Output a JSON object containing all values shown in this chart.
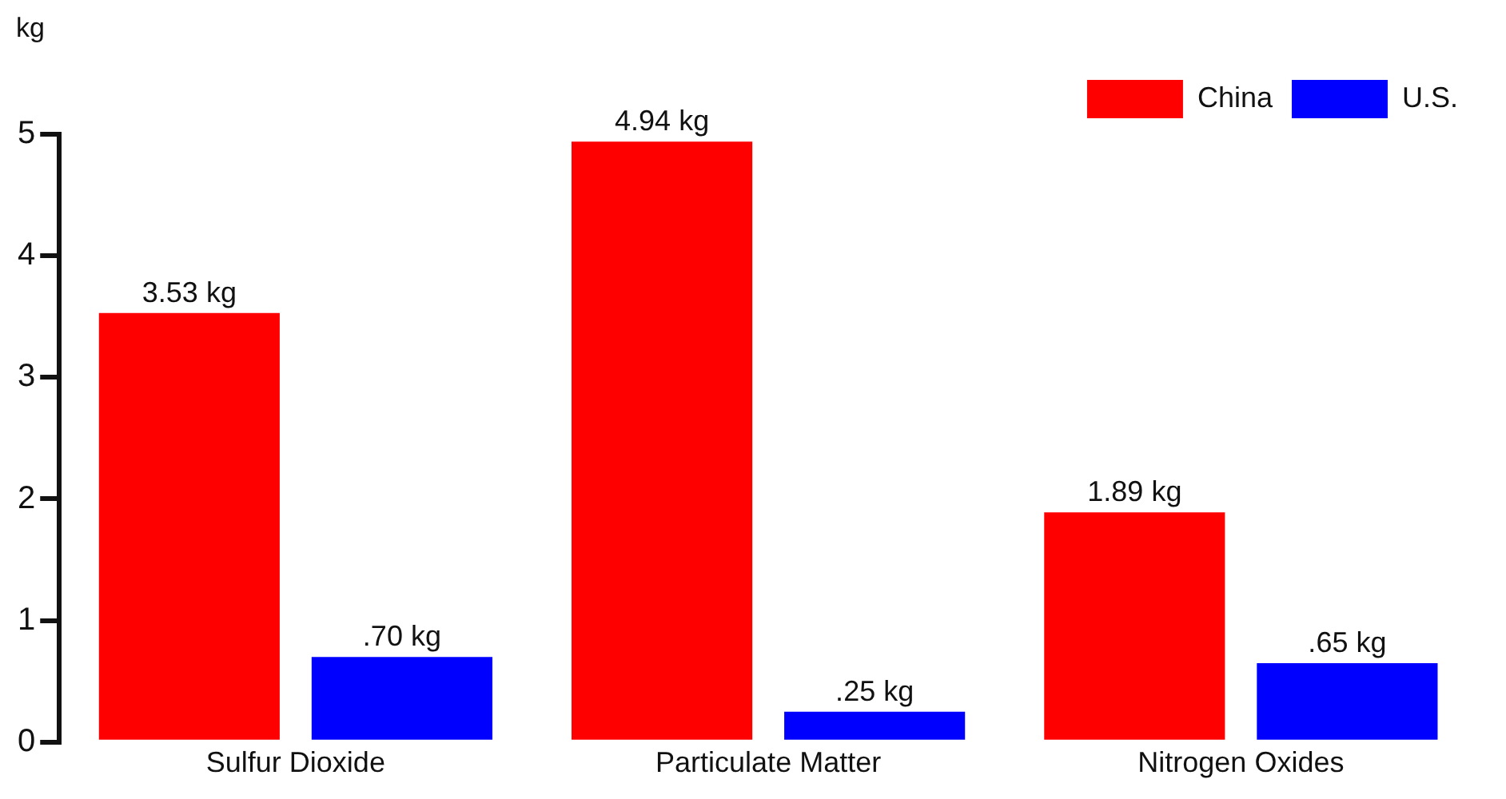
{
  "chart_data": {
    "type": "bar",
    "ylabel": "kg",
    "categories": [
      "Sulfur Dioxide",
      "Particulate Matter",
      "Nitrogen Oxides"
    ],
    "series": [
      {
        "name": "China",
        "color": "#ff0000",
        "values": [
          3.53,
          4.94,
          1.89
        ],
        "value_labels": [
          "3.53 kg",
          "4.94 kg",
          "1.89 kg"
        ]
      },
      {
        "name": "U.S.",
        "color": "#0000ff",
        "values": [
          0.7,
          0.25,
          0.65
        ],
        "value_labels": [
          ".70 kg",
          ".25 kg",
          ".65 kg"
        ]
      }
    ],
    "ylim": [
      0,
      5
    ],
    "yticks": [
      0,
      1,
      2,
      3,
      4,
      5
    ],
    "grid": false,
    "legend": "top right"
  }
}
